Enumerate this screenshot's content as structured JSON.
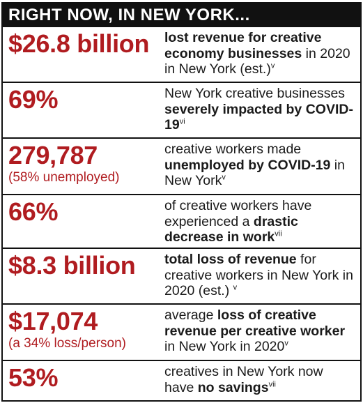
{
  "header": {
    "title": "RIGHT NOW, IN NEW YORK..."
  },
  "rows": [
    {
      "stat": "$26.8 billion",
      "sub": "",
      "desc": [
        {
          "t": "lost revenue for creative economy businesses",
          "b": true
        },
        {
          "t": " in 2020 in New York (est.)",
          "b": false
        },
        {
          "t": "v",
          "sup": true
        }
      ]
    },
    {
      "stat": "69%",
      "sub": "",
      "desc": [
        {
          "t": "New York creative businesses ",
          "b": false
        },
        {
          "t": "severely impacted by COVID-19",
          "b": true
        },
        {
          "t": "vi",
          "sup": true
        }
      ]
    },
    {
      "stat": "279,787",
      "sub": "(58% unemployed)",
      "desc": [
        {
          "t": "creative workers made ",
          "b": false
        },
        {
          "t": "unemployed by COVID-19",
          "b": true
        },
        {
          "t": " in New York",
          "b": false
        },
        {
          "t": "v",
          "sup": true
        }
      ]
    },
    {
      "stat": "66%",
      "sub": "",
      "desc": [
        {
          "t": "of creative workers have experienced a ",
          "b": false
        },
        {
          "t": "drastic decrease in work",
          "b": true
        },
        {
          "t": "vii",
          "sup": true
        }
      ]
    },
    {
      "stat": "$8.3 billion",
      "sub": "",
      "desc": [
        {
          "t": "total loss of revenue",
          "b": true
        },
        {
          "t": " for creative workers in New York in 2020 (est.) ",
          "b": false
        },
        {
          "t": "v",
          "sup": true
        }
      ]
    },
    {
      "stat": "$17,074",
      "sub": "(a 34% loss/person)",
      "desc": [
        {
          "t": "average ",
          "b": false
        },
        {
          "t": "loss of creative revenue per creative worker",
          "b": true
        },
        {
          "t": " in New York in 2020",
          "b": false
        },
        {
          "t": "v",
          "sup": true
        }
      ]
    },
    {
      "stat": "53%",
      "sub": "",
      "desc": [
        {
          "t": "creatives in New York now have ",
          "b": false
        },
        {
          "t": "no savings",
          "b": true
        },
        {
          "t": "vii",
          "sup": true
        }
      ]
    }
  ]
}
